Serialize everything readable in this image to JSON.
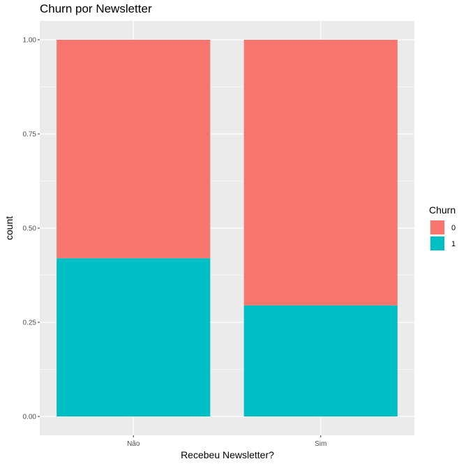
{
  "chart_data": {
    "type": "bar",
    "stacked": true,
    "normalized": true,
    "title": "Churn por Newsletter",
    "xlabel": "Recebeu Newsletter?",
    "ylabel": "count",
    "categories": [
      "Não",
      "Sim"
    ],
    "series": [
      {
        "name": "0",
        "values": [
          0.58,
          0.705
        ],
        "color": "#F8766D"
      },
      {
        "name": "1",
        "values": [
          0.42,
          0.295
        ],
        "color": "#00BFC4"
      }
    ],
    "ylim": [
      0,
      1
    ],
    "yticks": [
      0.0,
      0.25,
      0.5,
      0.75,
      1.0
    ],
    "ytick_labels": [
      "0.00",
      "0.25",
      "0.50",
      "0.75",
      "1.00"
    ],
    "grid": true,
    "panel_background": "#EBEBEB",
    "legend": {
      "title": "Churn",
      "placement": "right"
    }
  }
}
